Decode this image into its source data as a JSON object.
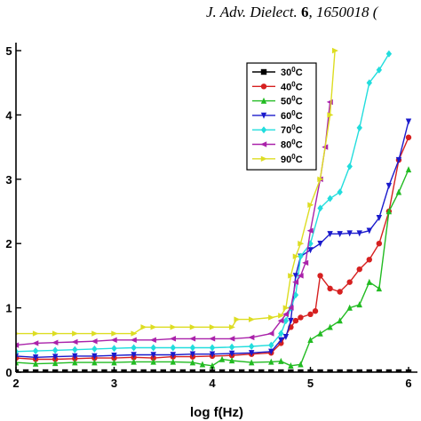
{
  "header": {
    "journal": "J. Adv. Dielect.",
    "volume": "6",
    "article": "1650018 ("
  },
  "chart_data": {
    "type": "line",
    "title": "",
    "xlabel": "log f(Hz)",
    "ylabel": "",
    "xlim": [
      2,
      6
    ],
    "ylim": [
      0,
      5
    ],
    "xticks": [
      "2",
      "3",
      "4",
      "5",
      "6"
    ],
    "yticks": [
      "0",
      "1",
      "2",
      "3",
      "4",
      "5"
    ],
    "grid": false,
    "legend_position": "top-right",
    "series": [
      {
        "name": "30°C",
        "label_base": "30",
        "label_sup": "0",
        "label_unit": "C",
        "color": "#000000",
        "marker": "square",
        "x": [
          2.0,
          2.1,
          2.2,
          2.3,
          2.4,
          2.5,
          2.6,
          2.7,
          2.8,
          2.9,
          3.0,
          3.1,
          3.2,
          3.3,
          3.4,
          3.5,
          3.6,
          3.7,
          3.8,
          3.9,
          4.0,
          4.1,
          4.2,
          4.3,
          4.4,
          4.5,
          4.6,
          4.7,
          4.8,
          4.9,
          5.0,
          5.1,
          5.2,
          5.3,
          5.4,
          5.5,
          5.6,
          5.7,
          5.8,
          5.9,
          6.0
        ],
        "y": [
          0.0,
          0.0,
          0.0,
          0.0,
          0.0,
          0.0,
          0.0,
          0.0,
          0.0,
          0.0,
          0.0,
          0.0,
          0.0,
          0.0,
          0.0,
          0.0,
          0.0,
          0.0,
          0.0,
          0.0,
          0.0,
          0.0,
          0.0,
          0.0,
          0.0,
          0.0,
          0.0,
          0.0,
          0.0,
          0.0,
          0.0,
          0.0,
          0.0,
          0.0,
          0.0,
          0.0,
          0.0,
          0.0,
          0.0,
          0.0,
          0.0
        ]
      },
      {
        "name": "40°C",
        "label_base": "40",
        "label_sup": "0",
        "label_unit": "C",
        "color": "#d62020",
        "marker": "circle",
        "x": [
          2.0,
          2.2,
          2.4,
          2.6,
          2.8,
          3.0,
          3.2,
          3.4,
          3.6,
          3.8,
          4.0,
          4.2,
          4.4,
          4.6,
          4.7,
          4.8,
          4.85,
          4.9,
          5.0,
          5.05,
          5.1,
          5.2,
          5.3,
          5.4,
          5.5,
          5.6,
          5.7,
          5.8,
          5.9,
          6.0
        ],
        "y": [
          0.22,
          0.2,
          0.2,
          0.21,
          0.22,
          0.22,
          0.23,
          0.22,
          0.24,
          0.24,
          0.25,
          0.26,
          0.28,
          0.3,
          0.45,
          0.7,
          0.8,
          0.85,
          0.9,
          0.95,
          1.5,
          1.3,
          1.25,
          1.4,
          1.6,
          1.75,
          2.0,
          2.5,
          3.3,
          3.65
        ]
      },
      {
        "name": "50°C",
        "label_base": "50",
        "label_sup": "0",
        "label_unit": "C",
        "color": "#22bb22",
        "marker": "triangle-up",
        "x": [
          2.0,
          2.2,
          2.4,
          2.6,
          2.8,
          3.0,
          3.2,
          3.4,
          3.6,
          3.8,
          3.9,
          4.0,
          4.1,
          4.2,
          4.4,
          4.6,
          4.7,
          4.8,
          4.9,
          5.0,
          5.1,
          5.2,
          5.3,
          5.4,
          5.5,
          5.6,
          5.7,
          5.8,
          5.9,
          6.0
        ],
        "y": [
          0.15,
          0.13,
          0.14,
          0.15,
          0.15,
          0.15,
          0.16,
          0.16,
          0.16,
          0.15,
          0.12,
          0.1,
          0.2,
          0.18,
          0.15,
          0.16,
          0.17,
          0.1,
          0.12,
          0.5,
          0.6,
          0.7,
          0.8,
          1.0,
          1.05,
          1.4,
          1.3,
          2.5,
          2.8,
          3.15
        ]
      },
      {
        "name": "60°C",
        "label_base": "60",
        "label_sup": "0",
        "label_unit": "C",
        "color": "#1a1acc",
        "marker": "triangle-down",
        "x": [
          2.0,
          2.2,
          2.4,
          2.6,
          2.8,
          3.0,
          3.2,
          3.4,
          3.6,
          3.8,
          4.0,
          4.2,
          4.4,
          4.6,
          4.7,
          4.75,
          4.8,
          4.85,
          4.9,
          5.0,
          5.1,
          5.2,
          5.3,
          5.4,
          5.5,
          5.6,
          5.7,
          5.8,
          5.9,
          6.0
        ],
        "y": [
          0.25,
          0.23,
          0.24,
          0.25,
          0.25,
          0.26,
          0.27,
          0.27,
          0.27,
          0.28,
          0.28,
          0.29,
          0.3,
          0.32,
          0.5,
          0.55,
          0.8,
          1.5,
          1.8,
          1.9,
          2.0,
          2.15,
          2.15,
          2.16,
          2.16,
          2.2,
          2.4,
          2.9,
          3.3,
          3.9
        ]
      },
      {
        "name": "70°C",
        "label_base": "70",
        "label_sup": "0",
        "label_unit": "C",
        "color": "#22dddd",
        "marker": "diamond",
        "x": [
          2.0,
          2.2,
          2.4,
          2.6,
          2.8,
          3.0,
          3.2,
          3.4,
          3.6,
          3.8,
          4.0,
          4.2,
          4.4,
          4.6,
          4.7,
          4.75,
          4.8,
          4.85,
          4.9,
          5.0,
          5.1,
          5.2,
          5.3,
          5.4,
          5.5,
          5.6,
          5.7,
          5.8
        ],
        "y": [
          0.32,
          0.33,
          0.34,
          0.35,
          0.36,
          0.37,
          0.38,
          0.38,
          0.38,
          0.38,
          0.38,
          0.39,
          0.4,
          0.42,
          0.6,
          0.8,
          1.0,
          1.2,
          1.8,
          2.0,
          2.55,
          2.7,
          2.8,
          3.2,
          3.8,
          4.5,
          4.7,
          4.95
        ]
      },
      {
        "name": "80°C",
        "label_base": "80",
        "label_sup": "0",
        "label_unit": "C",
        "color": "#aa22aa",
        "marker": "triangle-left",
        "x": [
          2.0,
          2.2,
          2.4,
          2.6,
          2.8,
          3.0,
          3.2,
          3.4,
          3.6,
          3.8,
          4.0,
          4.2,
          4.4,
          4.6,
          4.7,
          4.75,
          4.8,
          4.85,
          4.9,
          4.95,
          5.0,
          5.1,
          5.15,
          5.2
        ],
        "y": [
          0.42,
          0.45,
          0.46,
          0.47,
          0.48,
          0.5,
          0.5,
          0.5,
          0.52,
          0.52,
          0.52,
          0.52,
          0.54,
          0.6,
          0.8,
          0.9,
          1.0,
          1.4,
          1.5,
          1.7,
          2.2,
          3.0,
          3.5,
          4.2
        ]
      },
      {
        "name": "90°C",
        "label_base": "90",
        "label_sup": "0",
        "label_unit": "C",
        "color": "#dddd22",
        "marker": "triangle-right",
        "x": [
          2.0,
          2.2,
          2.4,
          2.6,
          2.8,
          3.0,
          3.2,
          3.3,
          3.4,
          3.6,
          3.8,
          4.0,
          4.2,
          4.25,
          4.4,
          4.6,
          4.7,
          4.75,
          4.8,
          4.85,
          4.9,
          5.0,
          5.1,
          5.2,
          5.25
        ],
        "y": [
          0.6,
          0.6,
          0.6,
          0.6,
          0.6,
          0.6,
          0.6,
          0.7,
          0.7,
          0.7,
          0.7,
          0.7,
          0.7,
          0.82,
          0.82,
          0.85,
          0.88,
          1.0,
          1.5,
          1.8,
          2.0,
          2.6,
          3.0,
          4.0,
          5.0
        ]
      }
    ]
  }
}
